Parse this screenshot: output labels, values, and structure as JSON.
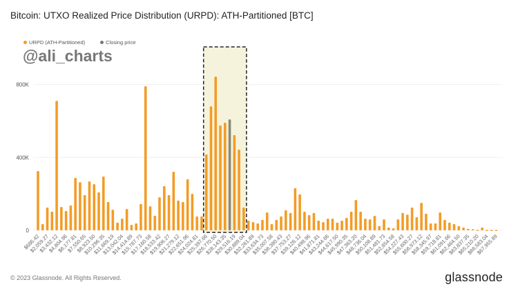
{
  "title": "Bitcoin: UTXO Realized Price Distribution (URPD): ATH-Partitioned [BTC]",
  "watermark": "@ali_charts",
  "footer": "© 2023 Glassnode. All Rights Reserved.",
  "logo": "glassnode",
  "chart_data": {
    "type": "bar",
    "legend": [
      {
        "name": "URPD (ATH-Partitioned)",
        "color": "#f39c26"
      },
      {
        "name": "Closing price",
        "color": "#8a8a78"
      }
    ],
    "legend_position": "top-left",
    "ylim": [
      0,
      800000
    ],
    "yticks": [
      "0",
      "400K",
      "800K"
    ],
    "ytick_values": [
      0,
      400000,
      800000
    ],
    "grid": true,
    "closing_price_bar_index": 41,
    "highlight_range_bar_indices": [
      36,
      44
    ],
    "xtick_labels": [
      "$686.42",
      "$2,059.27",
      "$3,432.12",
      "$4,804.96",
      "$6,177.81",
      "$7,550.65",
      "$8,923.50",
      "$10,296.35",
      "$11,669.19",
      "$13,042.04",
      "$14,414.89",
      "$15,787.73",
      "$17,160.58",
      "$18,533.42",
      "$19,906.27",
      "$21,279.12",
      "$22,651.96",
      "$24,024.81",
      "$25,397.66",
      "$26,770.50",
      "$28,143.35",
      "$29,516.19",
      "$30,889.04",
      "$32,261.89",
      "$33,634.73",
      "$35,007.58",
      "$36,380.43",
      "$37,753.27",
      "$39,126.12",
      "$40,498.96",
      "$41,871.81",
      "$43,244.66",
      "$44,617.50",
      "$45,990.35",
      "$47,363.20",
      "$48,736.04",
      "$50,108.89",
      "$51,481.73",
      "$52,854.58",
      "$54,227.43",
      "$55,600.27",
      "$56,973.12",
      "$58,345.97",
      "$59,718.81",
      "$61,091.66",
      "$62,464.50",
      "$63,837.35",
      "$65,210.20",
      "$66,583.04",
      "$67,955.89"
    ],
    "values": [
      325000,
      34000,
      125000,
      102000,
      710000,
      128000,
      106000,
      136000,
      287000,
      264000,
      193000,
      268000,
      253000,
      208000,
      295000,
      155000,
      113000,
      42000,
      64000,
      117000,
      30000,
      38000,
      144000,
      790000,
      132000,
      80000,
      181000,
      242000,
      193000,
      321000,
      163000,
      155000,
      280000,
      200000,
      76000,
      76000,
      416000,
      680000,
      843000,
      575000,
      590000,
      608000,
      522000,
      442000,
      125000,
      53000,
      45000,
      38000,
      57000,
      98000,
      34000,
      57000,
      76000,
      110000,
      95000,
      231000,
      197000,
      102000,
      83000,
      95000,
      53000,
      45000,
      64000,
      64000,
      42000,
      53000,
      68000,
      102000,
      166000,
      102000,
      64000,
      60000,
      79000,
      23000,
      60000,
      15000,
      11000,
      60000,
      95000,
      86000,
      125000,
      72000,
      151000,
      91000,
      38000,
      38000,
      98000,
      57000,
      42000,
      34000,
      23000,
      15000,
      8000,
      6000,
      3000,
      15000,
      2000,
      2000,
      2000
    ]
  }
}
